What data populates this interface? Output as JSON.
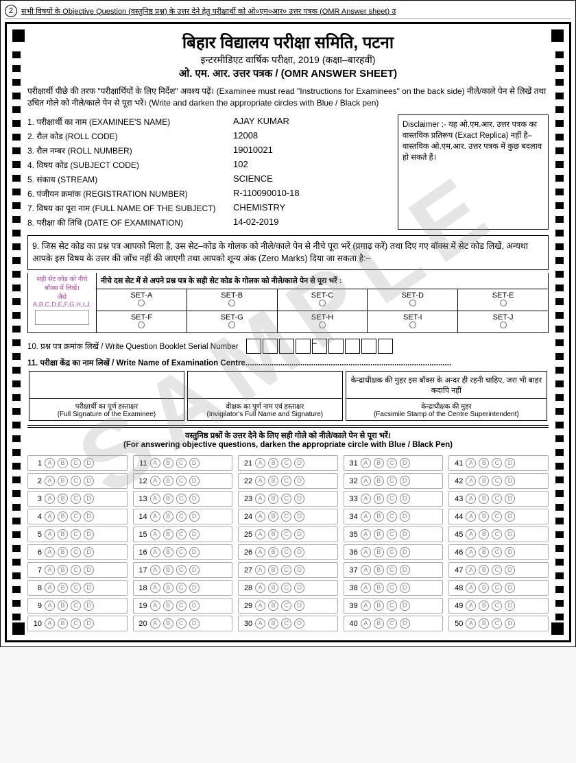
{
  "top_ref": {
    "num": "2",
    "text": "सभी विषयों के Objective Question (वस्तुनिष्ठ प्रश्न) के उत्तर देने हेतु परीक्षार्थी को ओ०एम०आर० उत्तर पत्रक (OMR Answer sheet) उ"
  },
  "header": {
    "title": "बिहार विद्यालय परीक्षा समिति, पटना",
    "sub1": "इन्टरमीडिएट वार्षिक परीक्षा, 2019 (कक्षा–बारहवीं)",
    "sub2": "ओ. एम. आर. उत्तर पत्रक / (OMR ANSWER SHEET)"
  },
  "instructions": "परीक्षार्थी पीछे की तरफ \"परीक्षार्थियों के लिए निर्देश\" अवश्य पढ़ें। (Examinee must read \"Instructions for Examinees\" on the back side) नीले/काले पेन से लिखें तथा उचित गोले को नीले/काले पेन से पूरा भरें। (Write and darken the appropriate circles with Blue / Black pen)",
  "fields": [
    {
      "n": "1.",
      "lbl": "परीक्षार्थी का नाम (EXAMINEE'S NAME)",
      "val": "AJAY KUMAR"
    },
    {
      "n": "2.",
      "lbl": "रौल कोड (ROLL CODE)",
      "val": "12008"
    },
    {
      "n": "3.",
      "lbl": "रौल नम्बर (ROLL NUMBER)",
      "val": "19010021"
    },
    {
      "n": "4.",
      "lbl": "विषय कोड (SUBJECT CODE)",
      "val": "102"
    },
    {
      "n": "5.",
      "lbl": "संकाय (STREAM)",
      "val": "SCIENCE"
    },
    {
      "n": "6.",
      "lbl": "पंजीयन क्रमांक (REGISTRATION NUMBER)",
      "val": "R-110090010-18"
    },
    {
      "n": "7.",
      "lbl": "विषय का पूरा नाम (FULL NAME OF THE SUBJECT)",
      "val": "CHEMISTRY"
    },
    {
      "n": "8.",
      "lbl": "परीक्षा की तिथि   (DATE OF EXAMINATION)",
      "val": "14-02-2019"
    }
  ],
  "disclaimer": "Disclaimer :- यह ओ.एम.आर. उत्तर पत्रक का वास्तविक प्रतिरूप (Exact Replica) नहीं है– वास्तविक ओ.एम.आर. उत्तर पत्रक में कुछ बदलाव हो सकते हैं।",
  "box9": "9. जिस सेट कोड का प्रश्न पत्र आपको मिला है, उस सेट–कोड के गोलक को नीले/काले पेन से नीचे पूरा भरें (प्रगाढ़ करें) तथा दिए गए बॉक्स में सेट कोड लिखें, अन्यथा आपके इस विषय के उत्तर की जाँच नहीं की जाएगी तथा आपको शून्य अंक (Zero Marks) दिया जा सकता है:–",
  "set_left": {
    "l1": "सही सेट कोड को नीचे बॉक्स में लिखें।",
    "l2": "जैसे",
    "l3": "A,B,C,D,E,F,G,H,I,J."
  },
  "set_hdr": "नीचे दस सेट में से अपने प्रश्न पत्र के सही सेट कोड के गोलक को नीले/काले पेन से पूरा भरें :",
  "sets_r1": [
    "SET-A",
    "SET-B",
    "SET-C",
    "SET-D",
    "SET-E"
  ],
  "sets_r2": [
    "SET-F",
    "SET-G",
    "SET-H",
    "SET-I",
    "SET-J"
  ],
  "row10": "10. प्रश्न पत्र क्रमांक लिखें / Write Question Booklet Serial Number",
  "row11": "11. परीक्षा केंद्र का नाम लिखें / Write Name of Examination Centre..............................................................................................",
  "sig": {
    "c1_bot": "परीक्षार्थी का पूर्ण हस्ताक्षर\n(Full Signature of the Examinee)",
    "c2_bot": "वीक्षक का पूर्ण नाम एवं हस्ताक्षर\n(Invigilator's Full Name and Signature)",
    "c3_top": "केन्द्राधीक्षक की मुहर इस बॉक्स के अन्दर ही रहनी चाहिए, जरा भी बाहर कदापि नहीं",
    "c3_bot": "केन्द्राधीक्षक की मुहर\n(Facsimile Stamp of the Centre Superintendent)"
  },
  "ans_hdr": "वस्तुनिष्ठ प्रश्नों के उत्तर देने के लिए सही गोले को नीले/काले पेन से पूरा भरें।\n(For answering objective questions, darken the appropriate circle with Blue / Black Pen)",
  "options": [
    "A",
    "B",
    "C",
    "D"
  ],
  "q_per_col": 10,
  "cols": 5,
  "watermark": "SAMPLE"
}
